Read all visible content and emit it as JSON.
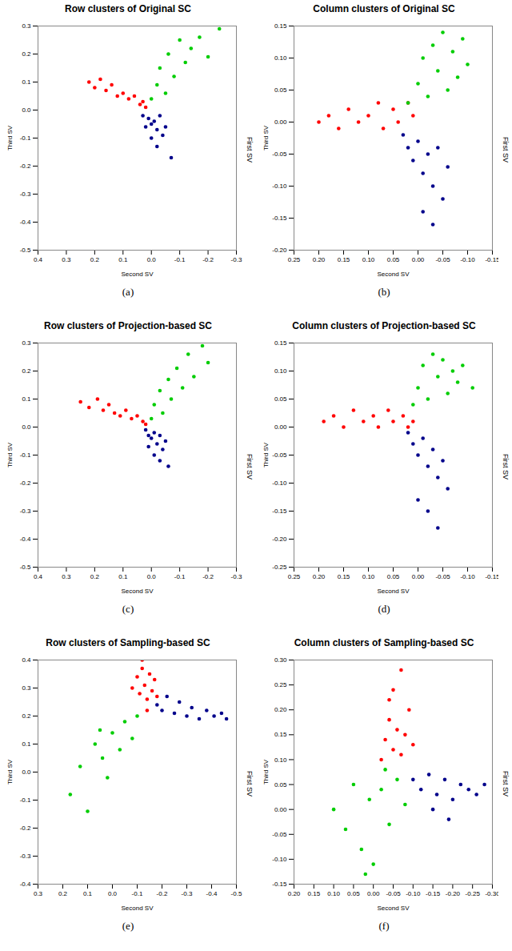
{
  "chart_data": [
    {
      "type": "scatter",
      "title": "Row clusters of Original SC",
      "caption": "(a)",
      "x_label": "Second SV",
      "y_label": "Third SV",
      "z_label": "First SV",
      "xlim": [
        0.4,
        -0.3
      ],
      "ylim": [
        -0.5,
        0.3
      ],
      "xticks": [
        0.4,
        0.3,
        0.2,
        0.1,
        {
          "value": 0,
          "label": "0.0"
        },
        -0.1,
        -0.2,
        -0.3
      ],
      "yticks": [
        0.3,
        0.2,
        0.1,
        {
          "value": 0,
          "label": "0.0"
        },
        -0.1,
        -0.2,
        -0.3,
        -0.4,
        -0.5
      ],
      "series": [
        {
          "color": "#ff0000",
          "x": [
            0.22,
            0.2,
            0.18,
            0.16,
            0.14,
            0.12,
            0.1,
            0.08,
            0.06,
            0.04,
            0.03,
            0.02
          ],
          "y": [
            0.1,
            0.08,
            0.11,
            0.07,
            0.09,
            0.05,
            0.06,
            0.04,
            0.05,
            0.02,
            0.03,
            0.01
          ]
        },
        {
          "color": "#00cd00",
          "x": [
            0.0,
            -0.02,
            -0.03,
            -0.05,
            -0.06,
            -0.08,
            -0.1,
            -0.12,
            -0.14,
            -0.17,
            -0.2,
            -0.24
          ],
          "y": [
            0.04,
            0.09,
            0.15,
            0.06,
            0.2,
            0.12,
            0.25,
            0.17,
            0.22,
            0.26,
            0.19,
            0.29
          ]
        },
        {
          "color": "#00008b",
          "x": [
            0.03,
            0.01,
            0.0,
            -0.01,
            -0.02,
            -0.03,
            0.02,
            -0.04,
            0.0,
            -0.05,
            -0.02,
            -0.07
          ],
          "y": [
            -0.02,
            -0.03,
            -0.05,
            -0.04,
            -0.07,
            -0.02,
            -0.06,
            -0.09,
            -0.1,
            -0.06,
            -0.13,
            -0.17
          ]
        }
      ]
    },
    {
      "type": "scatter",
      "title": "Column clusters of Original SC",
      "caption": "(b)",
      "x_label": "Second SV",
      "y_label": "Third SV",
      "z_label": "First SV",
      "xlim": [
        0.25,
        -0.15
      ],
      "ylim": [
        -0.2,
        0.15
      ],
      "xticks": [
        0.25,
        {
          "value": 0.2,
          "label": "0.20"
        },
        0.15,
        {
          "value": 0.1,
          "label": "0.10"
        },
        0.05,
        {
          "value": 0,
          "label": "0.00"
        },
        -0.05,
        {
          "value": -0.1,
          "label": "-0.10"
        },
        -0.15
      ],
      "yticks": [
        0.15,
        {
          "value": 0.1,
          "label": "0.10"
        },
        0.05,
        {
          "value": 0,
          "label": "0.00"
        },
        -0.05,
        {
          "value": -0.1,
          "label": "-0.10"
        },
        -0.15,
        {
          "value": -0.2,
          "label": "-0.20"
        }
      ],
      "series": [
        {
          "color": "#ff0000",
          "x": [
            0.2,
            0.18,
            0.16,
            0.14,
            0.12,
            0.1,
            0.08,
            0.07,
            0.05,
            0.04,
            0.02,
            0.01
          ],
          "y": [
            0.0,
            0.01,
            -0.01,
            0.02,
            0.0,
            0.01,
            0.03,
            -0.01,
            0.02,
            0.0,
            0.03,
            0.01
          ]
        },
        {
          "color": "#00cd00",
          "x": [
            0.02,
            0.0,
            -0.01,
            -0.02,
            -0.03,
            -0.04,
            -0.05,
            -0.06,
            -0.07,
            -0.08,
            -0.09,
            -0.1
          ],
          "y": [
            0.03,
            0.06,
            0.1,
            0.04,
            0.12,
            0.08,
            0.14,
            0.05,
            0.11,
            0.07,
            0.13,
            0.09
          ]
        },
        {
          "color": "#00008b",
          "x": [
            0.03,
            0.02,
            0.01,
            0.0,
            -0.01,
            -0.02,
            -0.03,
            -0.04,
            -0.05,
            -0.06,
            -0.01,
            -0.03
          ],
          "y": [
            -0.02,
            -0.04,
            -0.06,
            -0.03,
            -0.08,
            -0.05,
            -0.1,
            -0.04,
            -0.12,
            -0.07,
            -0.14,
            -0.16
          ]
        }
      ]
    },
    {
      "type": "scatter",
      "title": "Row clusters of Projection-based SC",
      "caption": "(c)",
      "x_label": "Second SV",
      "y_label": "Third SV",
      "z_label": "First SV",
      "xlim": [
        0.4,
        -0.3
      ],
      "ylim": [
        -0.5,
        0.3
      ],
      "xticks": [
        0.4,
        0.3,
        0.2,
        0.1,
        {
          "value": 0,
          "label": "0.0"
        },
        -0.1,
        -0.2,
        -0.3
      ],
      "yticks": [
        0.3,
        0.2,
        0.1,
        {
          "value": 0,
          "label": "0.0"
        },
        -0.1,
        -0.2,
        -0.3,
        -0.4,
        -0.5
      ],
      "series": [
        {
          "color": "#ff0000",
          "x": [
            0.25,
            0.22,
            0.19,
            0.17,
            0.15,
            0.13,
            0.11,
            0.09,
            0.07,
            0.05,
            0.03,
            0.02
          ],
          "y": [
            0.09,
            0.07,
            0.1,
            0.06,
            0.08,
            0.05,
            0.04,
            0.06,
            0.03,
            0.04,
            0.02,
            0.01
          ]
        },
        {
          "color": "#00cd00",
          "x": [
            0.0,
            -0.01,
            -0.03,
            -0.04,
            -0.06,
            -0.07,
            -0.09,
            -0.11,
            -0.13,
            -0.15,
            -0.18,
            -0.2
          ],
          "y": [
            0.03,
            0.08,
            0.13,
            0.05,
            0.17,
            0.1,
            0.21,
            0.14,
            0.26,
            0.18,
            0.29,
            0.23
          ]
        },
        {
          "color": "#00008b",
          "x": [
            0.02,
            0.01,
            0.0,
            -0.01,
            -0.02,
            -0.03,
            0.01,
            -0.04,
            -0.01,
            -0.05,
            -0.03,
            -0.06
          ],
          "y": [
            -0.01,
            -0.03,
            -0.04,
            -0.02,
            -0.06,
            -0.03,
            -0.07,
            -0.08,
            -0.1,
            -0.05,
            -0.12,
            -0.14
          ]
        }
      ]
    },
    {
      "type": "scatter",
      "title": "Column clusters of Projection-based SC",
      "caption": "(d)",
      "x_label": "Second SV",
      "y_label": "Third SV",
      "z_label": "First SV",
      "xlim": [
        0.25,
        -0.15
      ],
      "ylim": [
        -0.25,
        0.15
      ],
      "xticks": [
        0.25,
        {
          "value": 0.2,
          "label": "0.20"
        },
        0.15,
        {
          "value": 0.1,
          "label": "0.10"
        },
        0.05,
        {
          "value": 0,
          "label": "0.00"
        },
        -0.05,
        {
          "value": -0.1,
          "label": "-0.10"
        },
        -0.15
      ],
      "yticks": [
        0.15,
        {
          "value": 0.1,
          "label": "0.10"
        },
        0.05,
        {
          "value": 0,
          "label": "0.00"
        },
        -0.05,
        {
          "value": -0.1,
          "label": "-0.10"
        },
        -0.15,
        {
          "value": -0.2,
          "label": "-0.20"
        },
        -0.25
      ],
      "series": [
        {
          "color": "#ff0000",
          "x": [
            0.19,
            0.17,
            0.15,
            0.13,
            0.11,
            0.09,
            0.08,
            0.06,
            0.05,
            0.03,
            0.02,
            0.01
          ],
          "y": [
            0.01,
            0.02,
            0.0,
            0.03,
            0.01,
            0.02,
            0.0,
            0.03,
            0.01,
            0.02,
            0.0,
            0.01
          ]
        },
        {
          "color": "#00cd00",
          "x": [
            0.01,
            0.0,
            -0.01,
            -0.02,
            -0.03,
            -0.04,
            -0.05,
            -0.06,
            -0.07,
            -0.08,
            -0.09,
            -0.11
          ],
          "y": [
            0.04,
            0.07,
            0.11,
            0.05,
            0.13,
            0.09,
            0.12,
            0.06,
            0.1,
            0.08,
            0.11,
            0.07
          ]
        },
        {
          "color": "#00008b",
          "x": [
            0.02,
            0.01,
            0.0,
            -0.01,
            -0.02,
            -0.03,
            -0.04,
            -0.05,
            -0.06,
            0.0,
            -0.02,
            -0.04
          ],
          "y": [
            -0.01,
            -0.03,
            -0.05,
            -0.02,
            -0.07,
            -0.04,
            -0.09,
            -0.06,
            -0.11,
            -0.13,
            -0.15,
            -0.18
          ]
        }
      ]
    },
    {
      "type": "scatter",
      "title": "Row clusters of Sampling-based SC",
      "caption": "(e)",
      "x_label": "Second SV",
      "y_label": "Third SV",
      "z_label": "First SV",
      "xlim": [
        0.3,
        -0.5
      ],
      "ylim": [
        -0.4,
        0.4
      ],
      "xticks": [
        0.3,
        0.2,
        0.1,
        {
          "value": 0,
          "label": "0.0"
        },
        -0.1,
        -0.2,
        -0.3,
        -0.4,
        -0.5
      ],
      "yticks": [
        0.4,
        0.3,
        0.2,
        0.1,
        {
          "value": 0,
          "label": "0.0"
        },
        -0.1,
        -0.2,
        -0.3,
        -0.4
      ],
      "series": [
        {
          "color": "#ff0000",
          "x": [
            -0.08,
            -0.1,
            -0.11,
            -0.12,
            -0.13,
            -0.14,
            -0.15,
            -0.16,
            -0.17,
            -0.18,
            -0.12,
            -0.14
          ],
          "y": [
            0.3,
            0.34,
            0.28,
            0.37,
            0.31,
            0.26,
            0.35,
            0.29,
            0.33,
            0.27,
            0.4,
            0.22
          ]
        },
        {
          "color": "#00008b",
          "x": [
            -0.18,
            -0.2,
            -0.22,
            -0.25,
            -0.27,
            -0.3,
            -0.32,
            -0.35,
            -0.38,
            -0.41,
            -0.44,
            -0.46
          ],
          "y": [
            0.24,
            0.22,
            0.27,
            0.21,
            0.25,
            0.2,
            0.23,
            0.19,
            0.22,
            0.2,
            0.21,
            0.19
          ]
        },
        {
          "color": "#00cd00",
          "x": [
            0.17,
            0.13,
            0.1,
            0.07,
            0.04,
            0.02,
            0.0,
            -0.03,
            -0.05,
            -0.08,
            -0.1,
            0.05
          ],
          "y": [
            -0.08,
            0.02,
            -0.14,
            0.1,
            0.05,
            -0.02,
            0.14,
            0.08,
            0.18,
            0.12,
            0.2,
            0.15
          ]
        }
      ]
    },
    {
      "type": "scatter",
      "title": "Column clusters of Sampling-based SC",
      "caption": "(f)",
      "x_label": "Second SV",
      "y_label": "Third SV",
      "z_label": "First SV",
      "xlim": [
        0.2,
        -0.3
      ],
      "ylim": [
        -0.15,
        0.3
      ],
      "xticks": [
        {
          "value": 0.2,
          "label": "0.20"
        },
        0.15,
        {
          "value": 0.1,
          "label": "0.10"
        },
        0.05,
        {
          "value": 0,
          "label": "0.00"
        },
        -0.05,
        {
          "value": -0.1,
          "label": "-0.10"
        },
        -0.15,
        {
          "value": -0.2,
          "label": "-0.20"
        },
        -0.25,
        {
          "value": -0.3,
          "label": "-0.30"
        }
      ],
      "yticks": [
        {
          "value": 0.3,
          "label": "0.30"
        },
        0.25,
        {
          "value": 0.2,
          "label": "0.20"
        },
        0.15,
        {
          "value": 0.1,
          "label": "0.10"
        },
        0.05,
        {
          "value": 0,
          "label": "0.00"
        },
        -0.05,
        {
          "value": -0.1,
          "label": "-0.10"
        },
        -0.15
      ],
      "series": [
        {
          "color": "#ff0000",
          "x": [
            -0.02,
            -0.03,
            -0.04,
            -0.05,
            -0.06,
            -0.07,
            -0.08,
            -0.09,
            -0.1,
            -0.05,
            -0.07,
            -0.04
          ],
          "y": [
            0.1,
            0.14,
            0.18,
            0.12,
            0.16,
            0.11,
            0.15,
            0.2,
            0.13,
            0.24,
            0.28,
            0.22
          ]
        },
        {
          "color": "#00008b",
          "x": [
            -0.1,
            -0.12,
            -0.14,
            -0.16,
            -0.18,
            -0.2,
            -0.22,
            -0.24,
            -0.26,
            -0.28,
            -0.15,
            -0.19
          ],
          "y": [
            0.06,
            0.04,
            0.07,
            0.03,
            0.06,
            0.02,
            0.05,
            0.04,
            0.03,
            0.05,
            0.0,
            -0.02
          ]
        },
        {
          "color": "#00cd00",
          "x": [
            0.1,
            0.07,
            0.05,
            0.03,
            0.01,
            0.0,
            -0.02,
            -0.04,
            -0.06,
            -0.08,
            0.02,
            -0.03
          ],
          "y": [
            0.0,
            -0.04,
            0.05,
            -0.08,
            0.02,
            -0.11,
            0.04,
            -0.03,
            0.06,
            0.01,
            -0.13,
            0.08
          ]
        }
      ]
    }
  ]
}
